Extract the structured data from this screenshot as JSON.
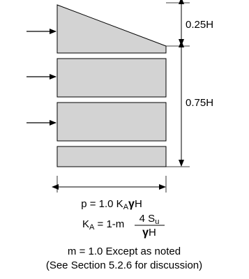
{
  "diagram": {
    "colors": {
      "fill": "#d3d3d3",
      "stroke": "#000000"
    },
    "dimensions": {
      "top": "0.25H",
      "bottom": "0.75H"
    },
    "formulas": {
      "pressure": {
        "prefix": "p = 1.0 K",
        "sub": "A",
        "gamma": "γ",
        "suffix": "H"
      },
      "ka": {
        "prefix": "K",
        "sub": "A",
        "equals": " = 1-m",
        "numerator_pre": "4 S",
        "numerator_sub": "u",
        "denominator_gamma": "γ",
        "denominator_suffix": "H"
      }
    },
    "notes": {
      "line1": "m = 1.0 Except as noted",
      "line2": "(See Section 5.2.6 for discussion)"
    }
  }
}
